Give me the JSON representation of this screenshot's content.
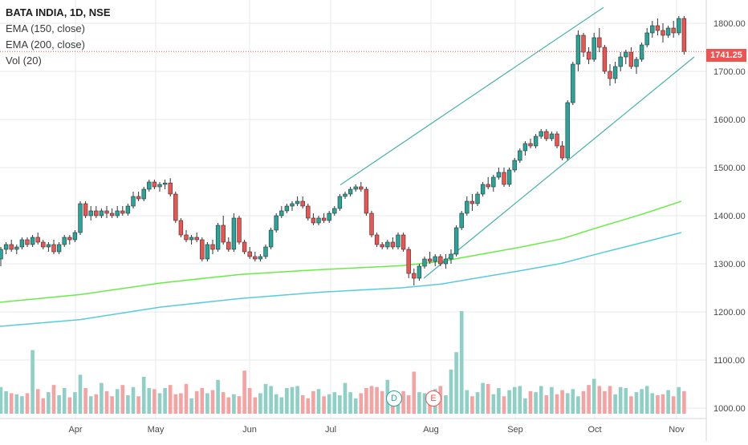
{
  "legend": {
    "title": "BATA INDIA, 1D, NSE",
    "ema150": "EMA (150, close)",
    "ema200": "EMA (200, close)",
    "vol": "Vol (20)"
  },
  "last_price_label": "1741.25",
  "events": {
    "dividend": "D",
    "earnings": "E"
  },
  "colors": {
    "up": "#26a69a",
    "down": "#ef5350",
    "vol_up": "#8ed0c6",
    "vol_down": "#f4a3a2",
    "ema150": "#66ee44",
    "ema200": "#55ccdd",
    "trendline": "#26a69a",
    "grid": "#e6e9ee",
    "axis_text": "#4a4a4a",
    "price_line": "#ef5350"
  },
  "chart_data": {
    "type": "candlestick",
    "title": "BATA INDIA, 1D, NSE",
    "x_tick_labels": [
      "Apr",
      "May",
      "Jun",
      "Jul",
      "Aug",
      "Sep",
      "Oct",
      "Nov"
    ],
    "y_tick_labels": [
      "1000.00",
      "1100.00",
      "1200.00",
      "1300.00",
      "1400.00",
      "1500.00",
      "1600.00",
      "1700.00",
      "1800.00"
    ],
    "ylim": [
      980,
      1840
    ],
    "last_price": 1741.25,
    "candles": [
      [
        1310,
        1335,
        1295,
        1330
      ],
      [
        1330,
        1345,
        1320,
        1340
      ],
      [
        1340,
        1350,
        1325,
        1330
      ],
      [
        1330,
        1340,
        1320,
        1335
      ],
      [
        1335,
        1355,
        1330,
        1350
      ],
      [
        1350,
        1355,
        1335,
        1340
      ],
      [
        1340,
        1360,
        1335,
        1355
      ],
      [
        1355,
        1365,
        1340,
        1345
      ],
      [
        1345,
        1350,
        1330,
        1335
      ],
      [
        1335,
        1345,
        1325,
        1340
      ],
      [
        1340,
        1350,
        1320,
        1325
      ],
      [
        1325,
        1345,
        1320,
        1340
      ],
      [
        1340,
        1360,
        1335,
        1355
      ],
      [
        1355,
        1360,
        1340,
        1350
      ],
      [
        1350,
        1370,
        1345,
        1365
      ],
      [
        1365,
        1430,
        1360,
        1425
      ],
      [
        1425,
        1430,
        1395,
        1400
      ],
      [
        1400,
        1420,
        1390,
        1410
      ],
      [
        1410,
        1420,
        1395,
        1400
      ],
      [
        1400,
        1415,
        1395,
        1410
      ],
      [
        1410,
        1420,
        1395,
        1405
      ],
      [
        1405,
        1415,
        1395,
        1400
      ],
      [
        1400,
        1420,
        1395,
        1410
      ],
      [
        1410,
        1420,
        1400,
        1405
      ],
      [
        1405,
        1425,
        1400,
        1420
      ],
      [
        1420,
        1450,
        1415,
        1440
      ],
      [
        1440,
        1450,
        1430,
        1435
      ],
      [
        1435,
        1460,
        1430,
        1455
      ],
      [
        1455,
        1475,
        1450,
        1470
      ],
      [
        1470,
        1475,
        1455,
        1460
      ],
      [
        1460,
        1470,
        1450,
        1465
      ],
      [
        1465,
        1475,
        1455,
        1468
      ],
      [
        1468,
        1478,
        1440,
        1445
      ],
      [
        1445,
        1450,
        1385,
        1390
      ],
      [
        1390,
        1395,
        1355,
        1360
      ],
      [
        1360,
        1370,
        1345,
        1350
      ],
      [
        1350,
        1360,
        1340,
        1355
      ],
      [
        1355,
        1365,
        1345,
        1350
      ],
      [
        1350,
        1355,
        1305,
        1310
      ],
      [
        1310,
        1345,
        1305,
        1340
      ],
      [
        1340,
        1350,
        1320,
        1330
      ],
      [
        1330,
        1385,
        1325,
        1380
      ],
      [
        1380,
        1400,
        1340,
        1345
      ],
      [
        1345,
        1355,
        1325,
        1330
      ],
      [
        1330,
        1405,
        1325,
        1395
      ],
      [
        1395,
        1400,
        1340,
        1345
      ],
      [
        1345,
        1350,
        1320,
        1325
      ],
      [
        1325,
        1335,
        1310,
        1315
      ],
      [
        1315,
        1325,
        1305,
        1310
      ],
      [
        1310,
        1320,
        1305,
        1315
      ],
      [
        1315,
        1340,
        1310,
        1335
      ],
      [
        1335,
        1375,
        1330,
        1370
      ],
      [
        1370,
        1405,
        1365,
        1400
      ],
      [
        1400,
        1420,
        1395,
        1410
      ],
      [
        1410,
        1425,
        1405,
        1420
      ],
      [
        1420,
        1430,
        1410,
        1425
      ],
      [
        1425,
        1440,
        1420,
        1430
      ],
      [
        1430,
        1440,
        1415,
        1420
      ],
      [
        1420,
        1425,
        1390,
        1395
      ],
      [
        1395,
        1405,
        1380,
        1385
      ],
      [
        1385,
        1400,
        1380,
        1395
      ],
      [
        1395,
        1405,
        1385,
        1390
      ],
      [
        1390,
        1410,
        1385,
        1405
      ],
      [
        1405,
        1420,
        1400,
        1415
      ],
      [
        1415,
        1445,
        1410,
        1440
      ],
      [
        1440,
        1450,
        1435,
        1445
      ],
      [
        1445,
        1460,
        1440,
        1455
      ],
      [
        1455,
        1465,
        1450,
        1460
      ],
      [
        1460,
        1470,
        1450,
        1455
      ],
      [
        1455,
        1460,
        1400,
        1405
      ],
      [
        1405,
        1410,
        1355,
        1360
      ],
      [
        1360,
        1365,
        1335,
        1340
      ],
      [
        1340,
        1345,
        1330,
        1335
      ],
      [
        1335,
        1350,
        1330,
        1345
      ],
      [
        1345,
        1355,
        1330,
        1335
      ],
      [
        1335,
        1365,
        1330,
        1360
      ],
      [
        1360,
        1365,
        1325,
        1330
      ],
      [
        1330,
        1335,
        1270,
        1280
      ],
      [
        1280,
        1290,
        1255,
        1270
      ],
      [
        1270,
        1300,
        1265,
        1295
      ],
      [
        1295,
        1315,
        1290,
        1310
      ],
      [
        1310,
        1325,
        1300,
        1305
      ],
      [
        1305,
        1320,
        1295,
        1315
      ],
      [
        1315,
        1320,
        1295,
        1300
      ],
      [
        1300,
        1320,
        1290,
        1310
      ],
      [
        1310,
        1330,
        1300,
        1320
      ],
      [
        1320,
        1380,
        1315,
        1375
      ],
      [
        1375,
        1410,
        1370,
        1405
      ],
      [
        1405,
        1440,
        1400,
        1430
      ],
      [
        1430,
        1445,
        1410,
        1425
      ],
      [
        1425,
        1450,
        1420,
        1445
      ],
      [
        1445,
        1470,
        1440,
        1465
      ],
      [
        1465,
        1480,
        1455,
        1460
      ],
      [
        1460,
        1485,
        1450,
        1480
      ],
      [
        1480,
        1500,
        1475,
        1490
      ],
      [
        1490,
        1500,
        1460,
        1465
      ],
      [
        1465,
        1500,
        1460,
        1495
      ],
      [
        1495,
        1520,
        1490,
        1515
      ],
      [
        1515,
        1540,
        1510,
        1535
      ],
      [
        1535,
        1555,
        1525,
        1550
      ],
      [
        1550,
        1560,
        1540,
        1545
      ],
      [
        1545,
        1570,
        1540,
        1565
      ],
      [
        1565,
        1580,
        1560,
        1575
      ],
      [
        1575,
        1580,
        1555,
        1560
      ],
      [
        1560,
        1575,
        1555,
        1570
      ],
      [
        1570,
        1575,
        1540,
        1545
      ],
      [
        1545,
        1555,
        1515,
        1520
      ],
      [
        1520,
        1640,
        1515,
        1635
      ],
      [
        1635,
        1720,
        1630,
        1715
      ],
      [
        1715,
        1785,
        1700,
        1775
      ],
      [
        1775,
        1780,
        1730,
        1740
      ],
      [
        1740,
        1750,
        1715,
        1725
      ],
      [
        1725,
        1780,
        1720,
        1770
      ],
      [
        1770,
        1790,
        1740,
        1750
      ],
      [
        1750,
        1755,
        1695,
        1700
      ],
      [
        1700,
        1715,
        1670,
        1685
      ],
      [
        1685,
        1720,
        1675,
        1710
      ],
      [
        1710,
        1740,
        1700,
        1730
      ],
      [
        1730,
        1745,
        1715,
        1740
      ],
      [
        1740,
        1750,
        1705,
        1710
      ],
      [
        1710,
        1730,
        1695,
        1725
      ],
      [
        1725,
        1760,
        1720,
        1755
      ],
      [
        1755,
        1790,
        1750,
        1780
      ],
      [
        1780,
        1805,
        1770,
        1795
      ],
      [
        1795,
        1810,
        1775,
        1785
      ],
      [
        1785,
        1800,
        1760,
        1775
      ],
      [
        1775,
        1795,
        1770,
        1790
      ],
      [
        1790,
        1805,
        1770,
        1780
      ],
      [
        1780,
        1815,
        1775,
        1810
      ],
      [
        1810,
        1815,
        1735,
        1741.25
      ]
    ],
    "volume_relative": [
      0.26,
      0.22,
      0.2,
      0.19,
      0.17,
      0.2,
      0.62,
      0.24,
      0.15,
      0.21,
      0.28,
      0.18,
      0.25,
      0.16,
      0.21,
      0.38,
      0.25,
      0.17,
      0.19,
      0.3,
      0.22,
      0.17,
      0.24,
      0.28,
      0.18,
      0.26,
      0.17,
      0.36,
      0.25,
      0.24,
      0.2,
      0.25,
      0.28,
      0.19,
      0.2,
      0.29,
      0.15,
      0.22,
      0.25,
      0.2,
      0.23,
      0.33,
      0.21,
      0.16,
      0.19,
      0.17,
      0.42,
      0.25,
      0.16,
      0.2,
      0.29,
      0.27,
      0.19,
      0.16,
      0.25,
      0.26,
      0.27,
      0.18,
      0.15,
      0.22,
      0.24,
      0.17,
      0.19,
      0.21,
      0.18,
      0.3,
      0.21,
      0.15,
      0.2,
      0.25,
      0.27,
      0.26,
      0.22,
      0.33,
      0.19,
      0.17,
      0.22,
      0.18,
      0.41,
      0.21,
      0.2,
      0.17,
      0.24,
      0.27,
      0.18,
      0.43,
      0.6,
      1.0,
      0.23,
      0.17,
      0.21,
      0.3,
      0.29,
      0.19,
      0.25,
      0.17,
      0.23,
      0.26,
      0.27,
      0.15,
      0.22,
      0.21,
      0.27,
      0.18,
      0.26,
      0.19,
      0.23,
      0.2,
      0.24,
      0.17,
      0.22,
      0.28,
      0.34,
      0.27,
      0.22,
      0.27,
      0.19,
      0.26,
      0.25,
      0.17,
      0.21,
      0.24,
      0.27,
      0.2,
      0.18,
      0.19,
      0.23,
      0.17,
      0.26,
      0.22
    ],
    "ema150": [
      [
        0,
        1220
      ],
      [
        100,
        1236
      ],
      [
        200,
        1260
      ],
      [
        300,
        1278
      ],
      [
        400,
        1288
      ],
      [
        500,
        1296
      ],
      [
        550,
        1305
      ],
      [
        600,
        1320
      ],
      [
        650,
        1335
      ],
      [
        700,
        1352
      ],
      [
        750,
        1378
      ],
      [
        800,
        1403
      ],
      [
        849,
        1430
      ]
    ],
    "ema200": [
      [
        0,
        1170
      ],
      [
        100,
        1184
      ],
      [
        200,
        1210
      ],
      [
        300,
        1228
      ],
      [
        400,
        1241
      ],
      [
        500,
        1250
      ],
      [
        550,
        1258
      ],
      [
        600,
        1272
      ],
      [
        650,
        1286
      ],
      [
        700,
        1301
      ],
      [
        750,
        1323
      ],
      [
        800,
        1344
      ],
      [
        849,
        1365
      ]
    ],
    "trendlines": [
      {
        "points": [
          [
            424,
            1464
          ],
          [
            752,
            1833
          ]
        ]
      },
      {
        "points": [
          [
            528,
            1270
          ],
          [
            865,
            1730
          ]
        ]
      }
    ],
    "event_markers": [
      {
        "label": "D"
      },
      {
        "label": "E"
      }
    ]
  }
}
